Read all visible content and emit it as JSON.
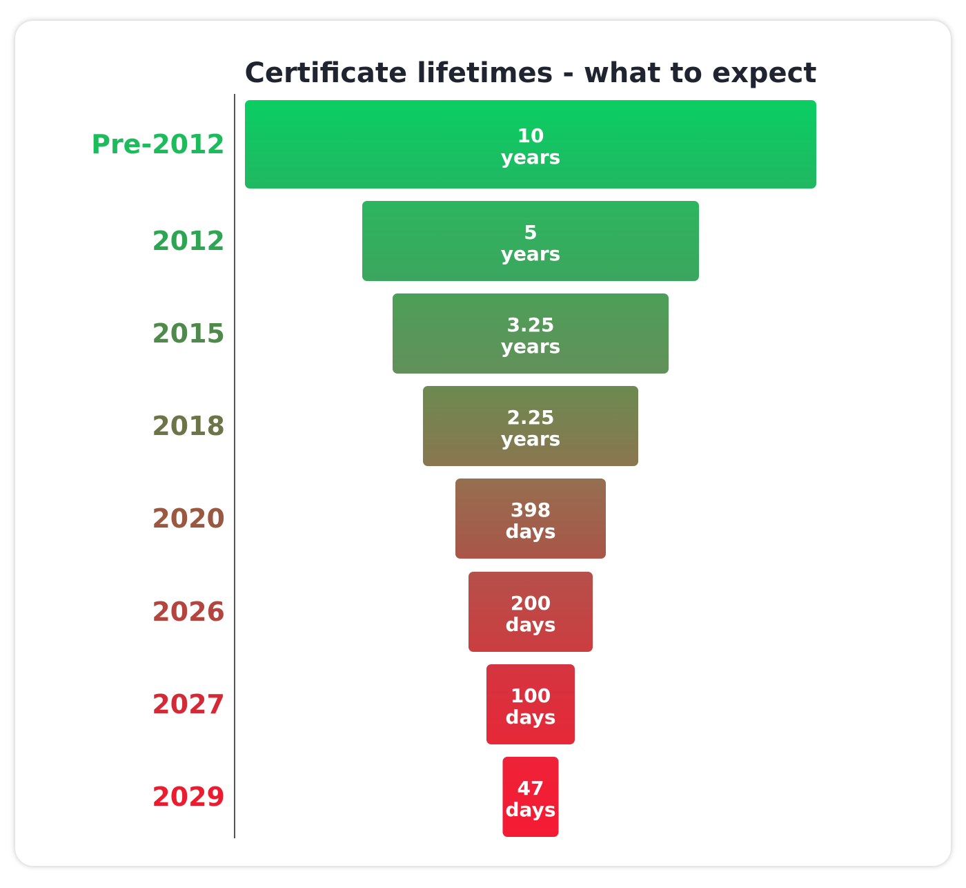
{
  "chart_data": {
    "type": "bar",
    "orientation": "horizontal-funnel",
    "title": "Certificate lifetimes - what to expect",
    "categories": [
      "Pre-2012",
      "2012",
      "2015",
      "2018",
      "2020",
      "2026",
      "2027",
      "2029"
    ],
    "values": [
      {
        "value": "10",
        "unit": "years"
      },
      {
        "value": "5",
        "unit": "years"
      },
      {
        "value": "3.25",
        "unit": "years"
      },
      {
        "value": "2.25",
        "unit": "years"
      },
      {
        "value": "398",
        "unit": "days"
      },
      {
        "value": "200",
        "unit": "days"
      },
      {
        "value": "100",
        "unit": "days"
      },
      {
        "value": "47",
        "unit": "days"
      }
    ],
    "colors": [
      [
        "#0ace62",
        "#21b862"
      ],
      [
        "#2cb55e",
        "#3ca65e"
      ],
      [
        "#4c9f58",
        "#62905a"
      ],
      [
        "#6c8a50",
        "#8a7650"
      ],
      [
        "#956f50",
        "#aa5548"
      ],
      [
        "#b5504a",
        "#cc3d40"
      ],
      [
        "#d43540",
        "#e62838"
      ],
      [
        "#ee2238",
        "#f51a33"
      ]
    ],
    "label_colors": [
      "#1cbb5c",
      "#2ea552",
      "#4f8a4c",
      "#6b7548",
      "#9a5840",
      "#b3443e",
      "#d42a36",
      "#ec1c30"
    ],
    "grid": false,
    "legend": "none"
  }
}
